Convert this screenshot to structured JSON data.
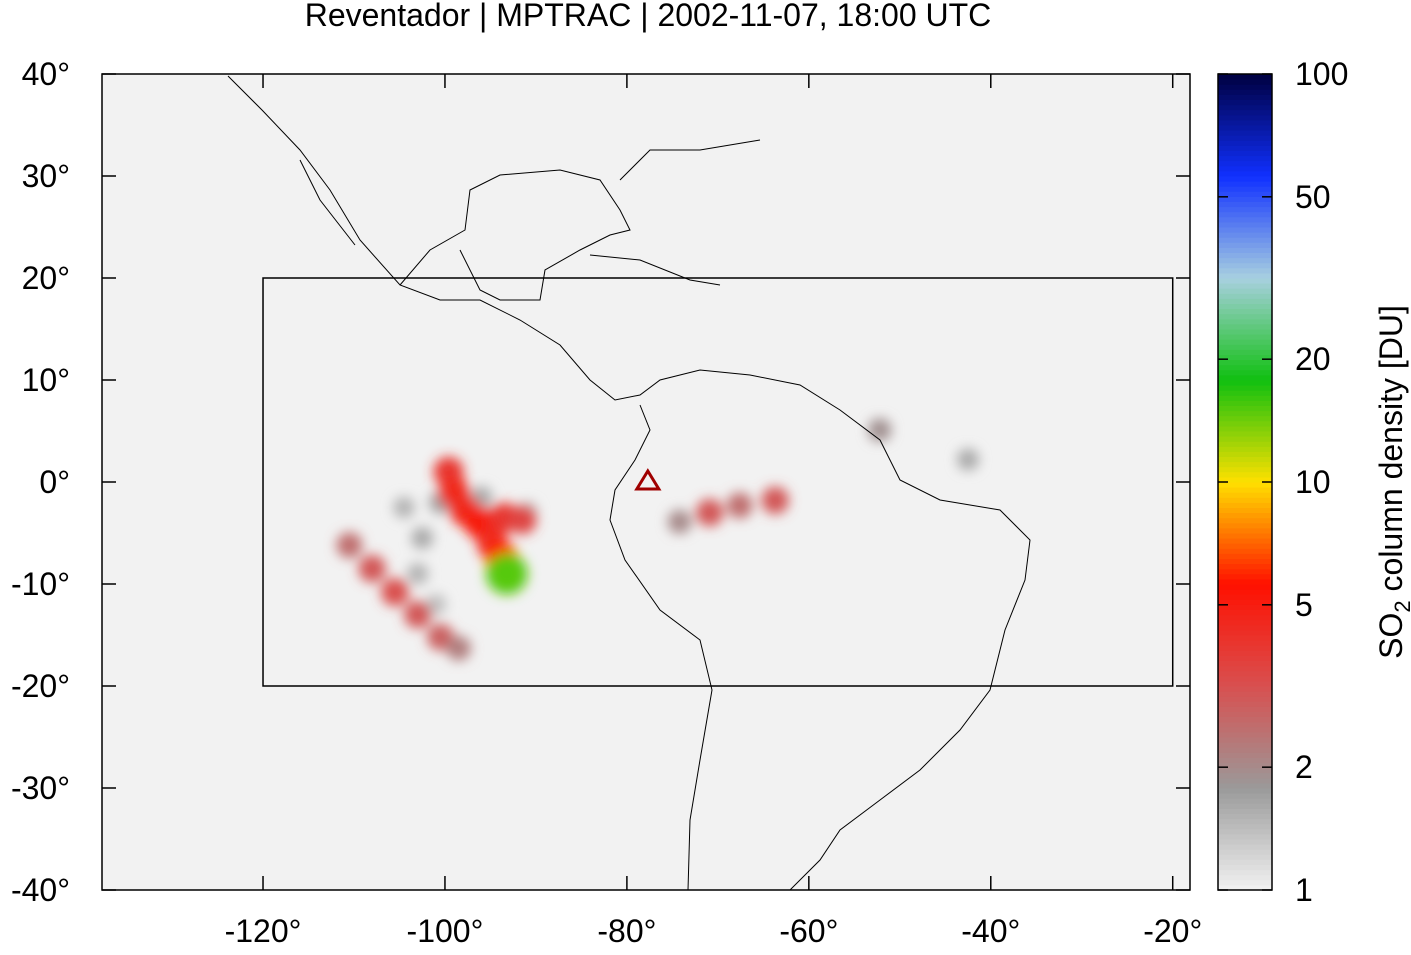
{
  "chart_data": {
    "type": "map",
    "title": "Reventador | MPTRAC | 2002-11-07, 18:00 UTC",
    "xlim": [
      -137.7,
      -18.1
    ],
    "ylim": [
      -40,
      40
    ],
    "xticks": [
      {
        "value": -120,
        "label": "-120°"
      },
      {
        "value": -100,
        "label": "-100°"
      },
      {
        "value": -80,
        "label": "-80°"
      },
      {
        "value": -60,
        "label": "-60°"
      },
      {
        "value": -40,
        "label": "-40°"
      },
      {
        "value": -20,
        "label": "-20°"
      }
    ],
    "yticks": [
      {
        "value": 40,
        "label": "40°"
      },
      {
        "value": 30,
        "label": "30°"
      },
      {
        "value": 20,
        "label": "20°"
      },
      {
        "value": 10,
        "label": "10°"
      },
      {
        "value": 0,
        "label": "0°"
      },
      {
        "value": -10,
        "label": "-10°"
      },
      {
        "value": -20,
        "label": "-20°"
      },
      {
        "value": -30,
        "label": "-30°"
      },
      {
        "value": -40,
        "label": "-40°"
      }
    ],
    "region": {
      "lon": [
        -120,
        -20
      ],
      "lat": [
        -20,
        20
      ]
    },
    "volcano": {
      "lon": -77.7,
      "lat": 0.1,
      "color": "#a00000"
    },
    "colorbar": {
      "label": [
        "SO",
        "2",
        " column density [DU]"
      ],
      "log": true,
      "lim": [
        1,
        100
      ],
      "ticks": [
        1,
        2,
        5,
        10,
        20,
        50,
        100
      ],
      "colors": [
        "#f2f2f2",
        "#9a9a9a",
        "#d85050",
        "#ff1000",
        "#ffe000",
        "#10c010",
        "#a8d0e0",
        "#1030ff",
        "#000040"
      ]
    },
    "plume": [
      {
        "lon": -104.5,
        "lat": -2.5,
        "value": 1.5
      },
      {
        "lon": -102.5,
        "lat": -5.5,
        "value": 1.6
      },
      {
        "lon": -103.0,
        "lat": -9.0,
        "value": 1.5
      },
      {
        "lon": -101.0,
        "lat": -12.0,
        "value": 1.4
      },
      {
        "lon": -100.5,
        "lat": -2.0,
        "value": 1.7
      },
      {
        "lon": -96.0,
        "lat": -1.5,
        "value": 1.6
      },
      {
        "lon": -91.0,
        "lat": -3.0,
        "value": 1.5
      },
      {
        "lon": -52.2,
        "lat": 5.1,
        "value": 1.9
      },
      {
        "lon": -42.5,
        "lat": 2.2,
        "value": 1.6
      },
      {
        "lon": -110.5,
        "lat": -6.2,
        "value": 2.5
      },
      {
        "lon": -108.0,
        "lat": -8.5,
        "value": 3.0
      },
      {
        "lon": -105.5,
        "lat": -10.8,
        "value": 3.2
      },
      {
        "lon": -103.0,
        "lat": -13.0,
        "value": 3.0
      },
      {
        "lon": -100.5,
        "lat": -15.2,
        "value": 2.8
      },
      {
        "lon": -98.5,
        "lat": -16.3,
        "value": 2.2
      },
      {
        "lon": -74.2,
        "lat": -3.9,
        "value": 2.0
      },
      {
        "lon": -70.9,
        "lat": -3.0,
        "value": 3.0
      },
      {
        "lon": -67.6,
        "lat": -2.3,
        "value": 2.5
      },
      {
        "lon": -63.7,
        "lat": -1.8,
        "value": 3.0
      },
      {
        "lon": -99.6,
        "lat": 1.0,
        "value": 4.0
      },
      {
        "lon": -99.0,
        "lat": -1.0,
        "value": 4.5
      },
      {
        "lon": -97.8,
        "lat": -2.8,
        "value": 4.5
      },
      {
        "lon": -96.2,
        "lat": -4.0,
        "value": 5.0
      },
      {
        "lon": -93.5,
        "lat": -3.5,
        "value": 4.0
      },
      {
        "lon": -91.5,
        "lat": -3.7,
        "value": 3.5
      },
      {
        "lon": -94.8,
        "lat": -6.0,
        "value": 4.5
      },
      {
        "lon": -93.8,
        "lat": -7.5,
        "value": 6.0
      },
      {
        "lon": -93.2,
        "lat": -9.0,
        "value": 15.0
      }
    ]
  }
}
